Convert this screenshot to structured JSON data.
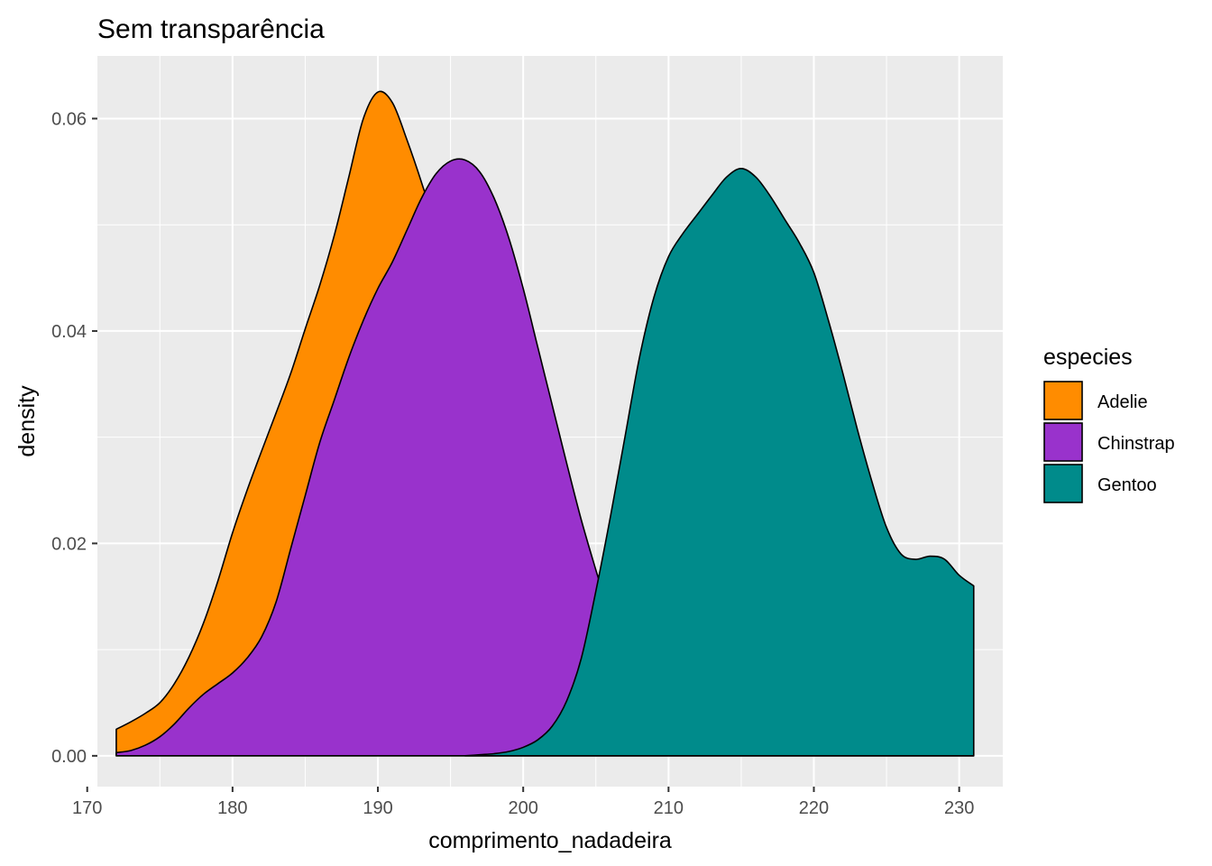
{
  "chart_data": {
    "type": "area",
    "title": "Sem transparência",
    "xlabel": "comprimento_nadadeira",
    "ylabel": "density",
    "xlim": [
      170.7,
      233.0
    ],
    "ylim": [
      -0.0029,
      0.0659
    ],
    "x_ticks": [
      170,
      180,
      190,
      200,
      210,
      220,
      230
    ],
    "x_tick_labels": [
      "170",
      "180",
      "190",
      "200",
      "210",
      "220",
      "230"
    ],
    "y_ticks": [
      0.0,
      0.02,
      0.04,
      0.06
    ],
    "y_tick_labels": [
      "0.00",
      "0.02",
      "0.04",
      "0.06"
    ],
    "grid": true,
    "panel_background": "#ebebeb",
    "legend": {
      "title": "especies",
      "position": "right"
    },
    "series": [
      {
        "name": "Adelie",
        "color": "#ff8c00",
        "points": [
          [
            172,
            0.0025
          ],
          [
            173,
            0.0032
          ],
          [
            174,
            0.004
          ],
          [
            175,
            0.005
          ],
          [
            176,
            0.0068
          ],
          [
            177,
            0.0093
          ],
          [
            178,
            0.0125
          ],
          [
            179,
            0.0165
          ],
          [
            180,
            0.021
          ],
          [
            181,
            0.025
          ],
          [
            182,
            0.0287
          ],
          [
            183,
            0.0323
          ],
          [
            184,
            0.036
          ],
          [
            185,
            0.0402
          ],
          [
            186,
            0.0443
          ],
          [
            187,
            0.049
          ],
          [
            188,
            0.0545
          ],
          [
            189,
            0.06
          ],
          [
            190,
            0.0625
          ],
          [
            191,
            0.0615
          ],
          [
            192,
            0.058
          ],
          [
            193,
            0.054
          ],
          [
            194,
            0.0495
          ],
          [
            195,
            0.043
          ],
          [
            196,
            0.036
          ],
          [
            197,
            0.029
          ],
          [
            198,
            0.0228
          ],
          [
            199,
            0.017
          ],
          [
            200,
            0.012
          ],
          [
            201,
            0.0075
          ],
          [
            202,
            0.0045
          ],
          [
            203,
            0.0025
          ],
          [
            204,
            0.0012
          ],
          [
            205,
            0.0006
          ],
          [
            206,
            0.0003
          ],
          [
            207,
            0.0001
          ],
          [
            208,
            0.0
          ],
          [
            231,
            0.0
          ]
        ]
      },
      {
        "name": "Chinstrap",
        "color": "#9932cc",
        "points": [
          [
            172,
            0.0003
          ],
          [
            173,
            0.0005
          ],
          [
            174,
            0.001
          ],
          [
            175,
            0.0018
          ],
          [
            176,
            0.003
          ],
          [
            177,
            0.0045
          ],
          [
            178,
            0.0058
          ],
          [
            179,
            0.0068
          ],
          [
            180,
            0.0078
          ],
          [
            181,
            0.0092
          ],
          [
            182,
            0.0112
          ],
          [
            183,
            0.0145
          ],
          [
            184,
            0.0195
          ],
          [
            185,
            0.0245
          ],
          [
            186,
            0.0295
          ],
          [
            187,
            0.0335
          ],
          [
            188,
            0.0375
          ],
          [
            189,
            0.041
          ],
          [
            190,
            0.044
          ],
          [
            191,
            0.0465
          ],
          [
            192,
            0.0495
          ],
          [
            193,
            0.0525
          ],
          [
            194,
            0.0548
          ],
          [
            195,
            0.056
          ],
          [
            196,
            0.0561
          ],
          [
            197,
            0.055
          ],
          [
            198,
            0.0525
          ],
          [
            199,
            0.0488
          ],
          [
            200,
            0.044
          ],
          [
            201,
            0.0385
          ],
          [
            202,
            0.033
          ],
          [
            203,
            0.0275
          ],
          [
            204,
            0.0222
          ],
          [
            205,
            0.0175
          ],
          [
            206,
            0.013
          ],
          [
            207,
            0.0085
          ],
          [
            208,
            0.0045
          ],
          [
            209,
            0.002
          ],
          [
            210,
            0.0008
          ],
          [
            211,
            0.0003
          ],
          [
            212,
            0.0001
          ],
          [
            213,
            0.0
          ],
          [
            231,
            0.0
          ]
        ]
      },
      {
        "name": "Gentoo",
        "color": "#008b8b",
        "points": [
          [
            196,
            0.0
          ],
          [
            197,
            0.0001
          ],
          [
            198,
            0.0002
          ],
          [
            199,
            0.0004
          ],
          [
            200,
            0.0008
          ],
          [
            201,
            0.0015
          ],
          [
            202,
            0.0028
          ],
          [
            203,
            0.0052
          ],
          [
            204,
            0.0092
          ],
          [
            205,
            0.0155
          ],
          [
            206,
            0.0225
          ],
          [
            207,
            0.03
          ],
          [
            208,
            0.0375
          ],
          [
            209,
            0.0432
          ],
          [
            210,
            0.047
          ],
          [
            211,
            0.0492
          ],
          [
            212,
            0.051
          ],
          [
            213,
            0.0528
          ],
          [
            214,
            0.0545
          ],
          [
            215,
            0.0553
          ],
          [
            216,
            0.0545
          ],
          [
            217,
            0.0527
          ],
          [
            218,
            0.0505
          ],
          [
            219,
            0.0483
          ],
          [
            220,
            0.0455
          ],
          [
            221,
            0.041
          ],
          [
            222,
            0.036
          ],
          [
            223,
            0.0307
          ],
          [
            224,
            0.0258
          ],
          [
            225,
            0.0215
          ],
          [
            226,
            0.019
          ],
          [
            227,
            0.0185
          ],
          [
            228,
            0.0188
          ],
          [
            229,
            0.0185
          ],
          [
            230,
            0.017
          ],
          [
            231,
            0.016
          ]
        ]
      }
    ]
  }
}
